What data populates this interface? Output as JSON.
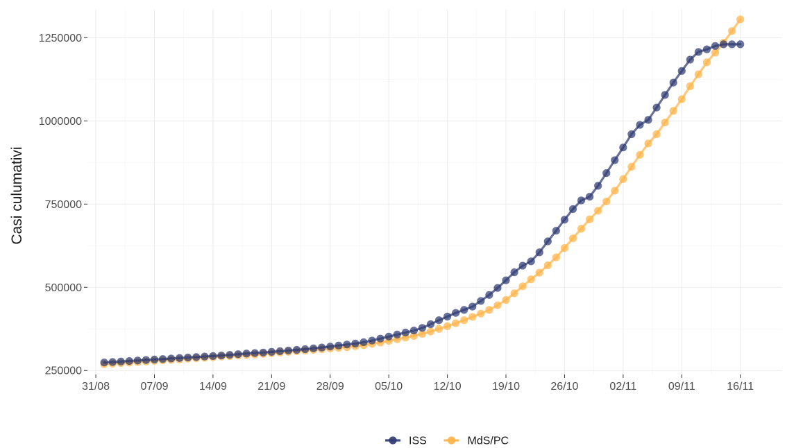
{
  "chart_data": {
    "type": "line",
    "title": "",
    "xlabel": "",
    "ylabel": "Casi culumativi",
    "x_axis": {
      "type": "date",
      "range": [
        "2020-08-30",
        "2020-11-21"
      ],
      "ticks": [
        {
          "date": "2020-08-31",
          "label": "31/08"
        },
        {
          "date": "2020-09-07",
          "label": "07/09"
        },
        {
          "date": "2020-09-14",
          "label": "14/09"
        },
        {
          "date": "2020-09-21",
          "label": "21/09"
        },
        {
          "date": "2020-09-28",
          "label": "28/09"
        },
        {
          "date": "2020-10-05",
          "label": "05/10"
        },
        {
          "date": "2020-10-12",
          "label": "12/10"
        },
        {
          "date": "2020-10-19",
          "label": "19/10"
        },
        {
          "date": "2020-10-26",
          "label": "26/10"
        },
        {
          "date": "2020-11-02",
          "label": "02/11"
        },
        {
          "date": "2020-11-09",
          "label": "09/11"
        },
        {
          "date": "2020-11-16",
          "label": "16/11"
        }
      ]
    },
    "y_axis": {
      "range": [
        238000,
        1334000
      ],
      "ticks": [
        250000,
        500000,
        750000,
        1000000,
        1250000
      ],
      "tick_labels": [
        "250000",
        "500000",
        "750000",
        "1000000",
        "1250000"
      ]
    },
    "grid": true,
    "legend": "bottom",
    "series": [
      {
        "name": "ISS",
        "color": "#2e3a72",
        "start_date": "2020-09-01",
        "values": [
          274000,
          275500,
          277000,
          278500,
          280000,
          281500,
          283000,
          284500,
          286000,
          287500,
          289000,
          290500,
          292000,
          293500,
          295000,
          297000,
          299000,
          301000,
          302500,
          304000,
          306000,
          308000,
          310000,
          312000,
          314000,
          316500,
          319000,
          322000,
          325000,
          328000,
          331000,
          335000,
          340000,
          346000,
          352000,
          358000,
          364000,
          370000,
          378000,
          389000,
          401000,
          412000,
          423000,
          432000,
          442000,
          459000,
          477000,
          498000,
          521000,
          545000,
          565000,
          578000,
          605000,
          638000,
          670000,
          703000,
          735000,
          761000,
          772000,
          805000,
          843000,
          882000,
          920000,
          960000,
          988000,
          1003000,
          1040000,
          1078000,
          1115000,
          1150000,
          1184000,
          1207000,
          1215000,
          1225000,
          1230000,
          1230000,
          1230000
        ]
      },
      {
        "name": "MdS/PC",
        "color": "#ffb347",
        "start_date": "2020-09-01",
        "values": [
          269000,
          270500,
          272000,
          273500,
          275500,
          277000,
          279000,
          280500,
          282000,
          283500,
          285500,
          287000,
          288500,
          290000,
          292000,
          293500,
          295000,
          296500,
          298000,
          300000,
          302000,
          304000,
          306000,
          308000,
          310000,
          312000,
          314000,
          316000,
          318000,
          320000,
          323000,
          326000,
          330000,
          334000,
          339000,
          344000,
          349000,
          354000,
          360000,
          367000,
          375000,
          383000,
          392000,
          401000,
          411000,
          421000,
          432000,
          446000,
          462000,
          482000,
          503000,
          524000,
          544000,
          566000,
          590000,
          618000,
          647000,
          676000,
          704000,
          730000,
          758000,
          790000,
          825000,
          862000,
          898000,
          932000,
          960000,
          995000,
          1030000,
          1065000,
          1104000,
          1140000,
          1176000,
          1205000,
          1235000,
          1270000,
          1305000
        ]
      }
    ]
  }
}
